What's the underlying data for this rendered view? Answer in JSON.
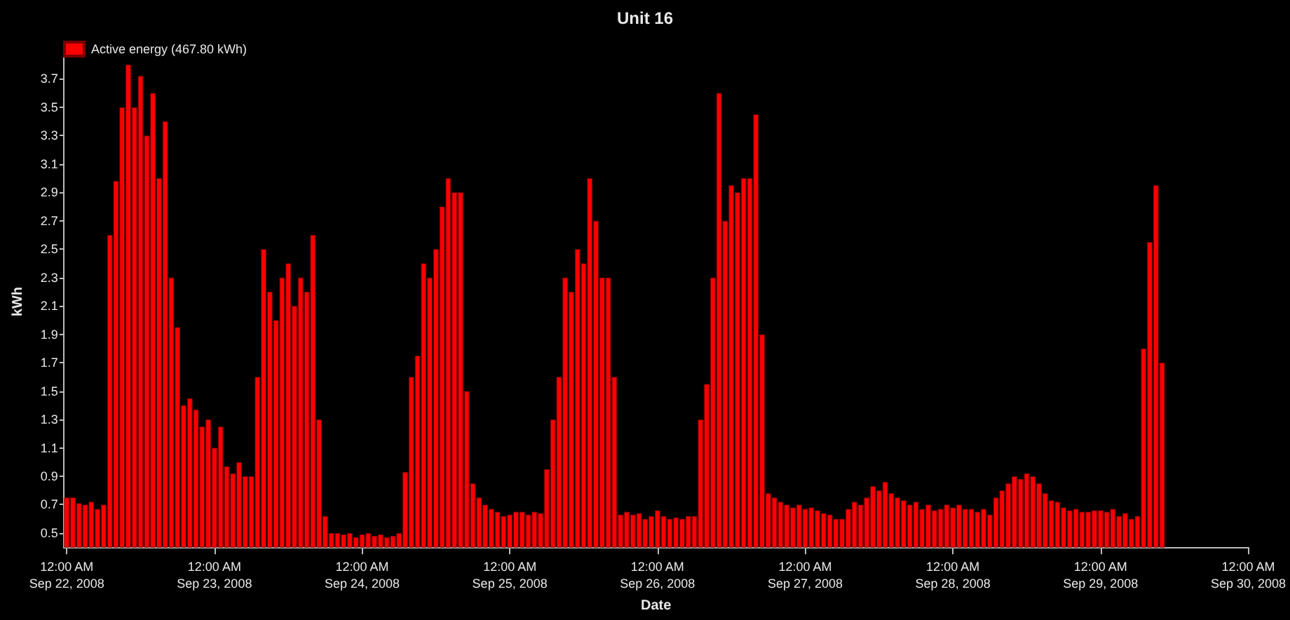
{
  "chart_data": {
    "type": "bar",
    "title": "Unit 16",
    "xlabel": "Date",
    "ylabel": "kWh",
    "x": [
      "2008-09-22T00:00",
      "2008-09-22T01:00",
      "2008-09-22T02:00",
      "2008-09-22T03:00",
      "2008-09-22T04:00",
      "2008-09-22T05:00",
      "2008-09-22T06:00",
      "2008-09-22T07:00",
      "2008-09-22T08:00",
      "2008-09-22T09:00",
      "2008-09-22T10:00",
      "2008-09-22T11:00",
      "2008-09-22T12:00",
      "2008-09-22T13:00",
      "2008-09-22T14:00",
      "2008-09-22T15:00",
      "2008-09-22T16:00",
      "2008-09-22T17:00",
      "2008-09-22T18:00",
      "2008-09-22T19:00",
      "2008-09-22T20:00",
      "2008-09-22T21:00",
      "2008-09-22T22:00",
      "2008-09-22T23:00",
      "2008-09-23T00:00",
      "2008-09-23T01:00",
      "2008-09-23T02:00",
      "2008-09-23T03:00",
      "2008-09-23T04:00",
      "2008-09-23T05:00",
      "2008-09-23T06:00",
      "2008-09-23T07:00",
      "2008-09-23T08:00",
      "2008-09-23T09:00",
      "2008-09-23T10:00",
      "2008-09-23T11:00",
      "2008-09-23T12:00",
      "2008-09-23T13:00",
      "2008-09-23T14:00",
      "2008-09-23T15:00",
      "2008-09-23T16:00",
      "2008-09-23T17:00",
      "2008-09-23T18:00",
      "2008-09-23T19:00",
      "2008-09-23T20:00",
      "2008-09-23T21:00",
      "2008-09-23T22:00",
      "2008-09-23T23:00",
      "2008-09-24T00:00",
      "2008-09-24T01:00",
      "2008-09-24T02:00",
      "2008-09-24T03:00",
      "2008-09-24T04:00",
      "2008-09-24T05:00",
      "2008-09-24T06:00",
      "2008-09-24T07:00",
      "2008-09-24T08:00",
      "2008-09-24T09:00",
      "2008-09-24T10:00",
      "2008-09-24T11:00",
      "2008-09-24T12:00",
      "2008-09-24T13:00",
      "2008-09-24T14:00",
      "2008-09-24T15:00",
      "2008-09-24T16:00",
      "2008-09-24T17:00",
      "2008-09-24T18:00",
      "2008-09-24T19:00",
      "2008-09-24T20:00",
      "2008-09-24T21:00",
      "2008-09-24T22:00",
      "2008-09-24T23:00",
      "2008-09-25T00:00",
      "2008-09-25T01:00",
      "2008-09-25T02:00",
      "2008-09-25T03:00",
      "2008-09-25T04:00",
      "2008-09-25T05:00",
      "2008-09-25T06:00",
      "2008-09-25T07:00",
      "2008-09-25T08:00",
      "2008-09-25T09:00",
      "2008-09-25T10:00",
      "2008-09-25T11:00",
      "2008-09-25T12:00",
      "2008-09-25T13:00",
      "2008-09-25T14:00",
      "2008-09-25T15:00",
      "2008-09-25T16:00",
      "2008-09-25T17:00",
      "2008-09-25T18:00",
      "2008-09-25T19:00",
      "2008-09-25T20:00",
      "2008-09-25T21:00",
      "2008-09-25T22:00",
      "2008-09-25T23:00",
      "2008-09-26T00:00",
      "2008-09-26T01:00",
      "2008-09-26T02:00",
      "2008-09-26T03:00",
      "2008-09-26T04:00",
      "2008-09-26T05:00",
      "2008-09-26T06:00",
      "2008-09-26T07:00",
      "2008-09-26T08:00",
      "2008-09-26T09:00",
      "2008-09-26T10:00",
      "2008-09-26T11:00",
      "2008-09-26T12:00",
      "2008-09-26T13:00",
      "2008-09-26T14:00",
      "2008-09-26T15:00",
      "2008-09-26T16:00",
      "2008-09-26T17:00",
      "2008-09-26T18:00",
      "2008-09-26T19:00",
      "2008-09-26T20:00",
      "2008-09-26T21:00",
      "2008-09-26T22:00",
      "2008-09-26T23:00",
      "2008-09-27T00:00",
      "2008-09-27T01:00",
      "2008-09-27T02:00",
      "2008-09-27T03:00",
      "2008-09-27T04:00",
      "2008-09-27T05:00",
      "2008-09-27T06:00",
      "2008-09-27T07:00",
      "2008-09-27T08:00",
      "2008-09-27T09:00",
      "2008-09-27T10:00",
      "2008-09-27T11:00",
      "2008-09-27T12:00",
      "2008-09-27T13:00",
      "2008-09-27T14:00",
      "2008-09-27T15:00",
      "2008-09-27T16:00",
      "2008-09-27T17:00",
      "2008-09-27T18:00",
      "2008-09-27T19:00",
      "2008-09-27T20:00",
      "2008-09-27T21:00",
      "2008-09-27T22:00",
      "2008-09-27T23:00",
      "2008-09-28T00:00",
      "2008-09-28T01:00",
      "2008-09-28T02:00",
      "2008-09-28T03:00",
      "2008-09-28T04:00",
      "2008-09-28T05:00",
      "2008-09-28T06:00",
      "2008-09-28T07:00",
      "2008-09-28T08:00",
      "2008-09-28T09:00",
      "2008-09-28T10:00",
      "2008-09-28T11:00",
      "2008-09-28T12:00",
      "2008-09-28T13:00",
      "2008-09-28T14:00",
      "2008-09-28T15:00",
      "2008-09-28T16:00",
      "2008-09-28T17:00",
      "2008-09-28T18:00",
      "2008-09-28T19:00",
      "2008-09-28T20:00",
      "2008-09-28T21:00",
      "2008-09-28T22:00",
      "2008-09-28T23:00",
      "2008-09-29T00:00",
      "2008-09-29T01:00",
      "2008-09-29T02:00",
      "2008-09-29T03:00",
      "2008-09-29T04:00",
      "2008-09-29T05:00",
      "2008-09-29T06:00",
      "2008-09-29T07:00",
      "2008-09-29T08:00",
      "2008-09-29T09:00",
      "2008-09-29T10:00"
    ],
    "series": [
      {
        "name": "Active energy (467.80 kWh)",
        "color": "#ff0000",
        "values": [
          0.75,
          0.75,
          0.71,
          0.7,
          0.72,
          0.67,
          0.7,
          2.6,
          2.98,
          3.5,
          3.8,
          3.5,
          3.72,
          3.3,
          3.6,
          3.0,
          3.4,
          2.3,
          1.95,
          1.4,
          1.45,
          1.37,
          1.25,
          1.3,
          1.1,
          1.25,
          0.97,
          0.92,
          1.0,
          0.9,
          0.9,
          1.6,
          2.5,
          2.2,
          2.0,
          2.3,
          2.4,
          2.1,
          2.3,
          2.2,
          2.6,
          1.3,
          0.62,
          0.5,
          0.5,
          0.49,
          0.5,
          0.47,
          0.49,
          0.5,
          0.48,
          0.49,
          0.47,
          0.48,
          0.5,
          0.93,
          1.6,
          1.75,
          2.4,
          2.3,
          2.5,
          2.8,
          3.0,
          2.9,
          2.9,
          1.5,
          0.85,
          0.75,
          0.7,
          0.67,
          0.65,
          0.62,
          0.63,
          0.65,
          0.65,
          0.63,
          0.65,
          0.64,
          0.95,
          1.3,
          1.6,
          2.3,
          2.2,
          2.5,
          2.4,
          3.0,
          2.7,
          2.3,
          2.3,
          1.6,
          0.63,
          0.65,
          0.63,
          0.64,
          0.6,
          0.62,
          0.66,
          0.62,
          0.6,
          0.61,
          0.6,
          0.62,
          0.62,
          1.3,
          1.55,
          2.3,
          3.6,
          2.7,
          2.95,
          2.9,
          3.0,
          3.0,
          3.45,
          1.9,
          0.78,
          0.75,
          0.72,
          0.7,
          0.68,
          0.7,
          0.67,
          0.68,
          0.66,
          0.64,
          0.63,
          0.6,
          0.6,
          0.67,
          0.72,
          0.7,
          0.75,
          0.83,
          0.8,
          0.86,
          0.78,
          0.75,
          0.73,
          0.7,
          0.72,
          0.67,
          0.7,
          0.66,
          0.67,
          0.7,
          0.68,
          0.7,
          0.67,
          0.67,
          0.65,
          0.67,
          0.63,
          0.75,
          0.8,
          0.85,
          0.9,
          0.88,
          0.92,
          0.9,
          0.85,
          0.78,
          0.73,
          0.72,
          0.68,
          0.66,
          0.67,
          0.65,
          0.65,
          0.66,
          0.66,
          0.65,
          0.67,
          0.62,
          0.64,
          0.6,
          0.62,
          1.8,
          2.55,
          2.95,
          1.7
        ]
      }
    ],
    "xlim": [
      "2008-09-21T23:30",
      "2008-09-30T00:00"
    ],
    "xticks": [
      {
        "value": "2008-09-22T00:00",
        "label": "12:00 AM\nSep 22, 2008"
      },
      {
        "value": "2008-09-23T00:00",
        "label": "12:00 AM\nSep 23, 2008"
      },
      {
        "value": "2008-09-24T00:00",
        "label": "12:00 AM\nSep 24, 2008"
      },
      {
        "value": "2008-09-25T00:00",
        "label": "12:00 AM\nSep 25, 2008"
      },
      {
        "value": "2008-09-26T00:00",
        "label": "12:00 AM\nSep 26, 2008"
      },
      {
        "value": "2008-09-27T00:00",
        "label": "12:00 AM\nSep 27, 2008"
      },
      {
        "value": "2008-09-28T00:00",
        "label": "12:00 AM\nSep 28, 2008"
      },
      {
        "value": "2008-09-29T00:00",
        "label": "12:00 AM\nSep 29, 2008"
      },
      {
        "value": "2008-09-30T00:00",
        "label": "12:00 AM\nSep 30, 2008"
      }
    ],
    "ylim": [
      0.4,
      3.86
    ],
    "yticks": [
      0.5,
      0.7,
      0.9,
      1.1,
      1.3,
      1.5,
      1.7,
      1.9,
      2.1,
      2.3,
      2.5,
      2.7,
      2.9,
      3.1,
      3.3,
      3.5,
      3.7
    ],
    "grid": false,
    "legend": "top left"
  }
}
